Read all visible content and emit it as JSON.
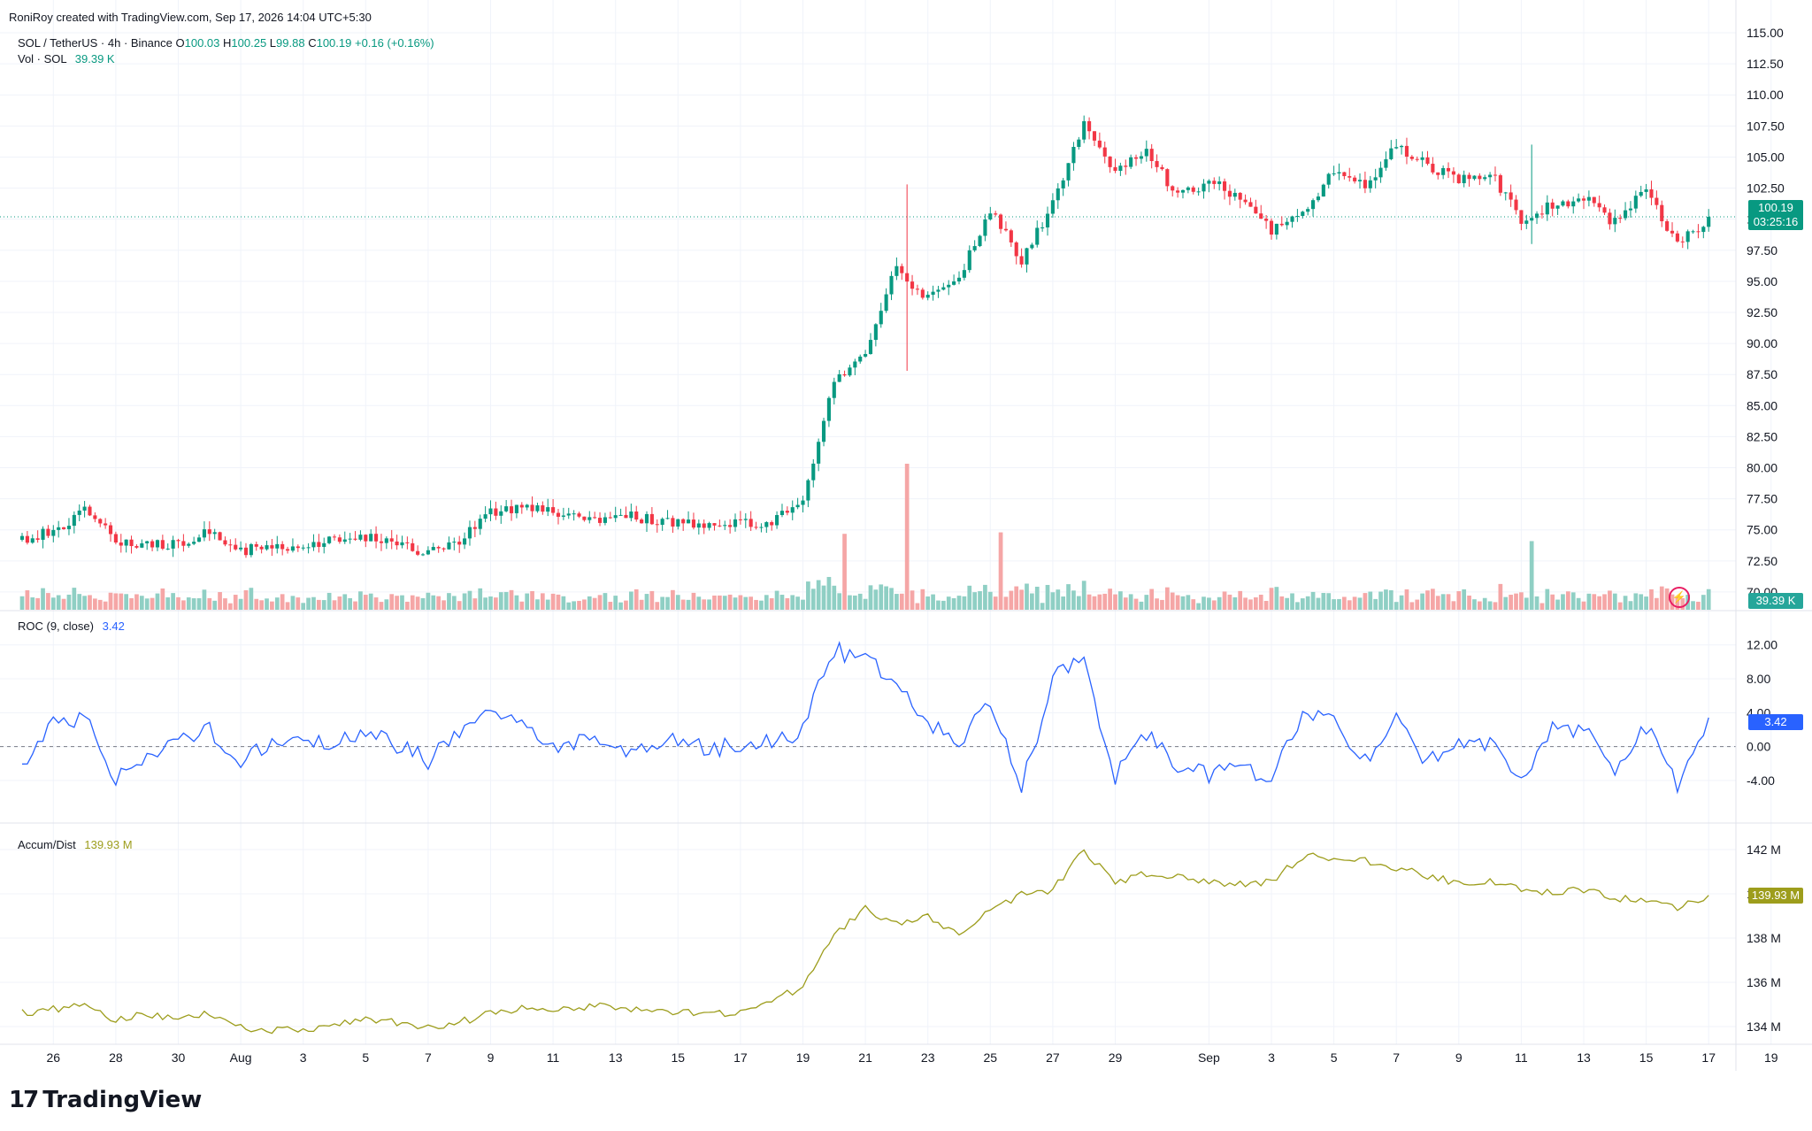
{
  "attribution": "RoniRoy created with TradingView.com, Sep 17, 2026 14:04 UTC+5:30",
  "symbol": {
    "name": "SOL / TetherUS · 4h · Binance",
    "open_label": "O",
    "open": "100.03",
    "high_label": "H",
    "high": "100.25",
    "low_label": "L",
    "low": "99.88",
    "close_label": "C",
    "close": "100.19",
    "change": "+0.16 (+0.16%)"
  },
  "volume_legend": {
    "label": "Vol · SOL",
    "value": "39.39 K"
  },
  "roc_legend": {
    "label": "ROC (9, close)",
    "value": "3.42"
  },
  "ad_legend": {
    "label": "Accum/Dist",
    "value": "139.93 M"
  },
  "price_tag": {
    "price": "100.19",
    "countdown": "03:25:16"
  },
  "volume_tag": "39.39 K",
  "roc_tag": "3.42",
  "ad_tag": "139.93 M",
  "logo_text": "TradingView",
  "colors": {
    "up": "#089981",
    "down": "#f23645",
    "up_vol": "#8fcfc4",
    "down_vol": "#f5a6a6",
    "roc": "#2962ff",
    "ad": "#9d9d1c",
    "grid": "#f0f3fa",
    "axis_text": "#131722"
  },
  "chart_data": [
    {
      "type": "candlestick",
      "title": "SOL / TetherUS · 4h · Binance",
      "y_axis_ticks": [
        "115.00",
        "112.50",
        "110.00",
        "107.50",
        "105.00",
        "102.50",
        "100.00",
        "97.50",
        "95.00",
        "92.50",
        "90.00",
        "87.50",
        "85.00",
        "82.50",
        "80.00",
        "77.50",
        "75.00",
        "72.50",
        "70.00"
      ],
      "ylim": [
        68.5,
        115.5
      ],
      "x_axis_ticks": [
        "26",
        "28",
        "30",
        "Aug",
        "3",
        "5",
        "7",
        "9",
        "11",
        "13",
        "15",
        "17",
        "19",
        "21",
        "23",
        "25",
        "27",
        "29",
        "Sep",
        "3",
        "5",
        "7",
        "9",
        "11",
        "13",
        "15",
        "17",
        "19"
      ],
      "x_range": [
        "Jul 25",
        "Sep 19"
      ],
      "last_price": 100.19,
      "close_path": [
        {
          "d": "Jul 25",
          "c": 74.2
        },
        {
          "d": "Jul 26",
          "c": 75.0
        },
        {
          "d": "Jul 27",
          "c": 76.5
        },
        {
          "d": "Jul 28",
          "c": 74.2
        },
        {
          "d": "Jul 29",
          "c": 73.8
        },
        {
          "d": "Jul 30",
          "c": 74.0
        },
        {
          "d": "Jul 31",
          "c": 74.9
        },
        {
          "d": "Aug 1",
          "c": 73.3
        },
        {
          "d": "Aug 2",
          "c": 73.9
        },
        {
          "d": "Aug 3",
          "c": 73.5
        },
        {
          "d": "Aug 4",
          "c": 74.3
        },
        {
          "d": "Aug 5",
          "c": 74.5
        },
        {
          "d": "Aug 6",
          "c": 73.9
        },
        {
          "d": "Aug 7",
          "c": 73.2
        },
        {
          "d": "Aug 8",
          "c": 74.2
        },
        {
          "d": "Aug 9",
          "c": 76.5
        },
        {
          "d": "Aug 10",
          "c": 76.9
        },
        {
          "d": "Aug 11",
          "c": 76.3
        },
        {
          "d": "Aug 12",
          "c": 75.8
        },
        {
          "d": "Aug 13",
          "c": 76.2
        },
        {
          "d": "Aug 14",
          "c": 75.9
        },
        {
          "d": "Aug 15",
          "c": 75.6
        },
        {
          "d": "Aug 16",
          "c": 75.5
        },
        {
          "d": "Aug 17",
          "c": 75.4
        },
        {
          "d": "Aug 18",
          "c": 75.8
        },
        {
          "d": "Aug 19",
          "c": 77.0
        },
        {
          "d": "Aug 20",
          "c": 86.8
        },
        {
          "d": "Aug 21",
          "c": 89.3
        },
        {
          "d": "Aug 22",
          "c": 96.2
        },
        {
          "d": "Aug 23",
          "c": 93.5
        },
        {
          "d": "Aug 24",
          "c": 95.3
        },
        {
          "d": "Aug 25",
          "c": 100.7
        },
        {
          "d": "Aug 26",
          "c": 96.8
        },
        {
          "d": "Aug 27",
          "c": 101.2
        },
        {
          "d": "Aug 28",
          "c": 107.8
        },
        {
          "d": "Aug 29",
          "c": 104.0
        },
        {
          "d": "Aug 30",
          "c": 105.3
        },
        {
          "d": "Aug 31",
          "c": 102.0
        },
        {
          "d": "Sep 1",
          "c": 103.0
        },
        {
          "d": "Sep 2",
          "c": 101.8
        },
        {
          "d": "Sep 3",
          "c": 99.0
        },
        {
          "d": "Sep 4",
          "c": 100.3
        },
        {
          "d": "Sep 5",
          "c": 103.8
        },
        {
          "d": "Sep 6",
          "c": 102.5
        },
        {
          "d": "Sep 7",
          "c": 106.0
        },
        {
          "d": "Sep 8",
          "c": 104.3
        },
        {
          "d": "Sep 9",
          "c": 103.2
        },
        {
          "d": "Sep 10",
          "c": 103.8
        },
        {
          "d": "Sep 11",
          "c": 99.8
        },
        {
          "d": "Sep 12",
          "c": 101.2
        },
        {
          "d": "Sep 13",
          "c": 101.7
        },
        {
          "d": "Sep 14",
          "c": 99.7
        },
        {
          "d": "Sep 15",
          "c": 102.5
        },
        {
          "d": "Sep 16",
          "c": 97.8
        },
        {
          "d": "Sep 17",
          "c": 100.19
        }
      ],
      "spike_wicks": [
        {
          "d": "Aug 22",
          "high": 102.8,
          "low": 87.8
        },
        {
          "d": "Sep 11",
          "high": 106.0,
          "low": 98.0
        }
      ]
    },
    {
      "type": "bar",
      "title": "Vol · SOL",
      "last_value": "39.39 K",
      "notable_spikes": [
        {
          "d": "Aug 22",
          "relative_height": 1.0
        },
        {
          "d": "Aug 20",
          "relative_height": 0.52
        },
        {
          "d": "Aug 25",
          "relative_height": 0.53
        },
        {
          "d": "Sep 11",
          "relative_height": 0.47
        }
      ]
    },
    {
      "type": "line",
      "title": "ROC (9, close)",
      "y_axis_ticks": [
        "12.00",
        "8.00",
        "4.00",
        "0.00",
        "-4.00"
      ],
      "ylim": [
        -8.5,
        15
      ],
      "last_value": 3.42,
      "series": [
        {
          "points": [
            {
              "d": "Jul 25",
              "v": -1.8
            },
            {
              "d": "Jul 26",
              "v": 2.5
            },
            {
              "d": "Jul 27",
              "v": 3.2
            },
            {
              "d": "Jul 28",
              "v": -3.5
            },
            {
              "d": "Jul 29",
              "v": -1.0
            },
            {
              "d": "Jul 30",
              "v": 1.5
            },
            {
              "d": "Jul 31",
              "v": 1.8
            },
            {
              "d": "Aug 1",
              "v": -2.2
            },
            {
              "d": "Aug 2",
              "v": 1.0
            },
            {
              "d": "Aug 3",
              "v": 0.8
            },
            {
              "d": "Aug 4",
              "v": 0.5
            },
            {
              "d": "Aug 5",
              "v": 1.9
            },
            {
              "d": "Aug 6",
              "v": 0.2
            },
            {
              "d": "Aug 7",
              "v": -1.7
            },
            {
              "d": "Aug 8",
              "v": 2.0
            },
            {
              "d": "Aug 9",
              "v": 4.5
            },
            {
              "d": "Aug 10",
              "v": 3.0
            },
            {
              "d": "Aug 11",
              "v": -0.5
            },
            {
              "d": "Aug 12",
              "v": 1.0
            },
            {
              "d": "Aug 13",
              "v": 0.2
            },
            {
              "d": "Aug 14",
              "v": -0.8
            },
            {
              "d": "Aug 15",
              "v": 0.8
            },
            {
              "d": "Aug 16",
              "v": -0.2
            },
            {
              "d": "Aug 17",
              "v": 0.2
            },
            {
              "d": "Aug 18",
              "v": 0.5
            },
            {
              "d": "Aug 19",
              "v": 2.0
            },
            {
              "d": "Aug 20",
              "v": 11.5
            },
            {
              "d": "Aug 21",
              "v": 10.0
            },
            {
              "d": "Aug 22",
              "v": 8.0
            },
            {
              "d": "Aug 23",
              "v": 2.5
            },
            {
              "d": "Aug 24",
              "v": 0.5
            },
            {
              "d": "Aug 25",
              "v": 5.0
            },
            {
              "d": "Aug 26",
              "v": -5.0
            },
            {
              "d": "Aug 27",
              "v": 8.0
            },
            {
              "d": "Aug 28",
              "v": 10.0
            },
            {
              "d": "Aug 29",
              "v": -3.5
            },
            {
              "d": "Aug 30",
              "v": 1.5
            },
            {
              "d": "Aug 31",
              "v": -2.5
            },
            {
              "d": "Sep 1",
              "v": -3.2
            },
            {
              "d": "Sep 2",
              "v": -2.0
            },
            {
              "d": "Sep 3",
              "v": -4.0
            },
            {
              "d": "Sep 4",
              "v": 4.0
            },
            {
              "d": "Sep 5",
              "v": 3.0
            },
            {
              "d": "Sep 6",
              "v": -1.8
            },
            {
              "d": "Sep 7",
              "v": 3.5
            },
            {
              "d": "Sep 8",
              "v": -2.0
            },
            {
              "d": "Sep 9",
              "v": 0.3
            },
            {
              "d": "Sep 10",
              "v": 0.5
            },
            {
              "d": "Sep 11",
              "v": -4.5
            },
            {
              "d": "Sep 12",
              "v": 2.5
            },
            {
              "d": "Sep 13",
              "v": 2.0
            },
            {
              "d": "Sep 14",
              "v": -2.3
            },
            {
              "d": "Sep 15",
              "v": 2.5
            },
            {
              "d": "Sep 16",
              "v": -5.0
            },
            {
              "d": "Sep 17",
              "v": 3.42
            }
          ]
        }
      ]
    },
    {
      "type": "line",
      "title": "Accum/Dist",
      "y_axis_ticks": [
        "142 M",
        "140 M",
        "138 M",
        "136 M",
        "134 M"
      ],
      "ylim": [
        133.2,
        143
      ],
      "last_value": 139.93,
      "series": [
        {
          "points": [
            {
              "d": "Jul 25",
              "v": 134.6
            },
            {
              "d": "Jul 26",
              "v": 134.8
            },
            {
              "d": "Jul 27",
              "v": 134.9
            },
            {
              "d": "Jul 28",
              "v": 134.3
            },
            {
              "d": "Jul 29",
              "v": 134.6
            },
            {
              "d": "Jul 30",
              "v": 134.3
            },
            {
              "d": "Jul 31",
              "v": 134.6
            },
            {
              "d": "Aug 1",
              "v": 134.0
            },
            {
              "d": "Aug 2",
              "v": 133.8
            },
            {
              "d": "Aug 3",
              "v": 133.9
            },
            {
              "d": "Aug 4",
              "v": 134.0
            },
            {
              "d": "Aug 5",
              "v": 134.4
            },
            {
              "d": "Aug 6",
              "v": 134.2
            },
            {
              "d": "Aug 7",
              "v": 133.9
            },
            {
              "d": "Aug 8",
              "v": 134.2
            },
            {
              "d": "Aug 9",
              "v": 134.6
            },
            {
              "d": "Aug 10",
              "v": 134.8
            },
            {
              "d": "Aug 11",
              "v": 134.8
            },
            {
              "d": "Aug 12",
              "v": 134.9
            },
            {
              "d": "Aug 13",
              "v": 134.9
            },
            {
              "d": "Aug 14",
              "v": 134.7
            },
            {
              "d": "Aug 15",
              "v": 134.7
            },
            {
              "d": "Aug 16",
              "v": 134.6
            },
            {
              "d": "Aug 17",
              "v": 134.6
            },
            {
              "d": "Aug 18",
              "v": 135.2
            },
            {
              "d": "Aug 19",
              "v": 135.8
            },
            {
              "d": "Aug 20",
              "v": 138.2
            },
            {
              "d": "Aug 21",
              "v": 139.3
            },
            {
              "d": "Aug 22",
              "v": 138.6
            },
            {
              "d": "Aug 23",
              "v": 139.0
            },
            {
              "d": "Aug 24",
              "v": 138.2
            },
            {
              "d": "Aug 25",
              "v": 139.2
            },
            {
              "d": "Aug 26",
              "v": 140.0
            },
            {
              "d": "Aug 27",
              "v": 140.2
            },
            {
              "d": "Aug 28",
              "v": 142.0
            },
            {
              "d": "Aug 29",
              "v": 140.5
            },
            {
              "d": "Aug 30",
              "v": 140.9
            },
            {
              "d": "Aug 31",
              "v": 140.8
            },
            {
              "d": "Sep 1",
              "v": 140.6
            },
            {
              "d": "Sep 2",
              "v": 140.4
            },
            {
              "d": "Sep 3",
              "v": 140.6
            },
            {
              "d": "Sep 4",
              "v": 141.7
            },
            {
              "d": "Sep 5",
              "v": 141.6
            },
            {
              "d": "Sep 6",
              "v": 141.5
            },
            {
              "d": "Sep 7",
              "v": 141.2
            },
            {
              "d": "Sep 8",
              "v": 140.8
            },
            {
              "d": "Sep 9",
              "v": 140.5
            },
            {
              "d": "Sep 10",
              "v": 140.6
            },
            {
              "d": "Sep 11",
              "v": 140.2
            },
            {
              "d": "Sep 12",
              "v": 140.1
            },
            {
              "d": "Sep 13",
              "v": 140.2
            },
            {
              "d": "Sep 14",
              "v": 139.8
            },
            {
              "d": "Sep 15",
              "v": 139.7
            },
            {
              "d": "Sep 16",
              "v": 139.3
            },
            {
              "d": "Sep 17",
              "v": 139.93
            }
          ]
        }
      ]
    }
  ]
}
